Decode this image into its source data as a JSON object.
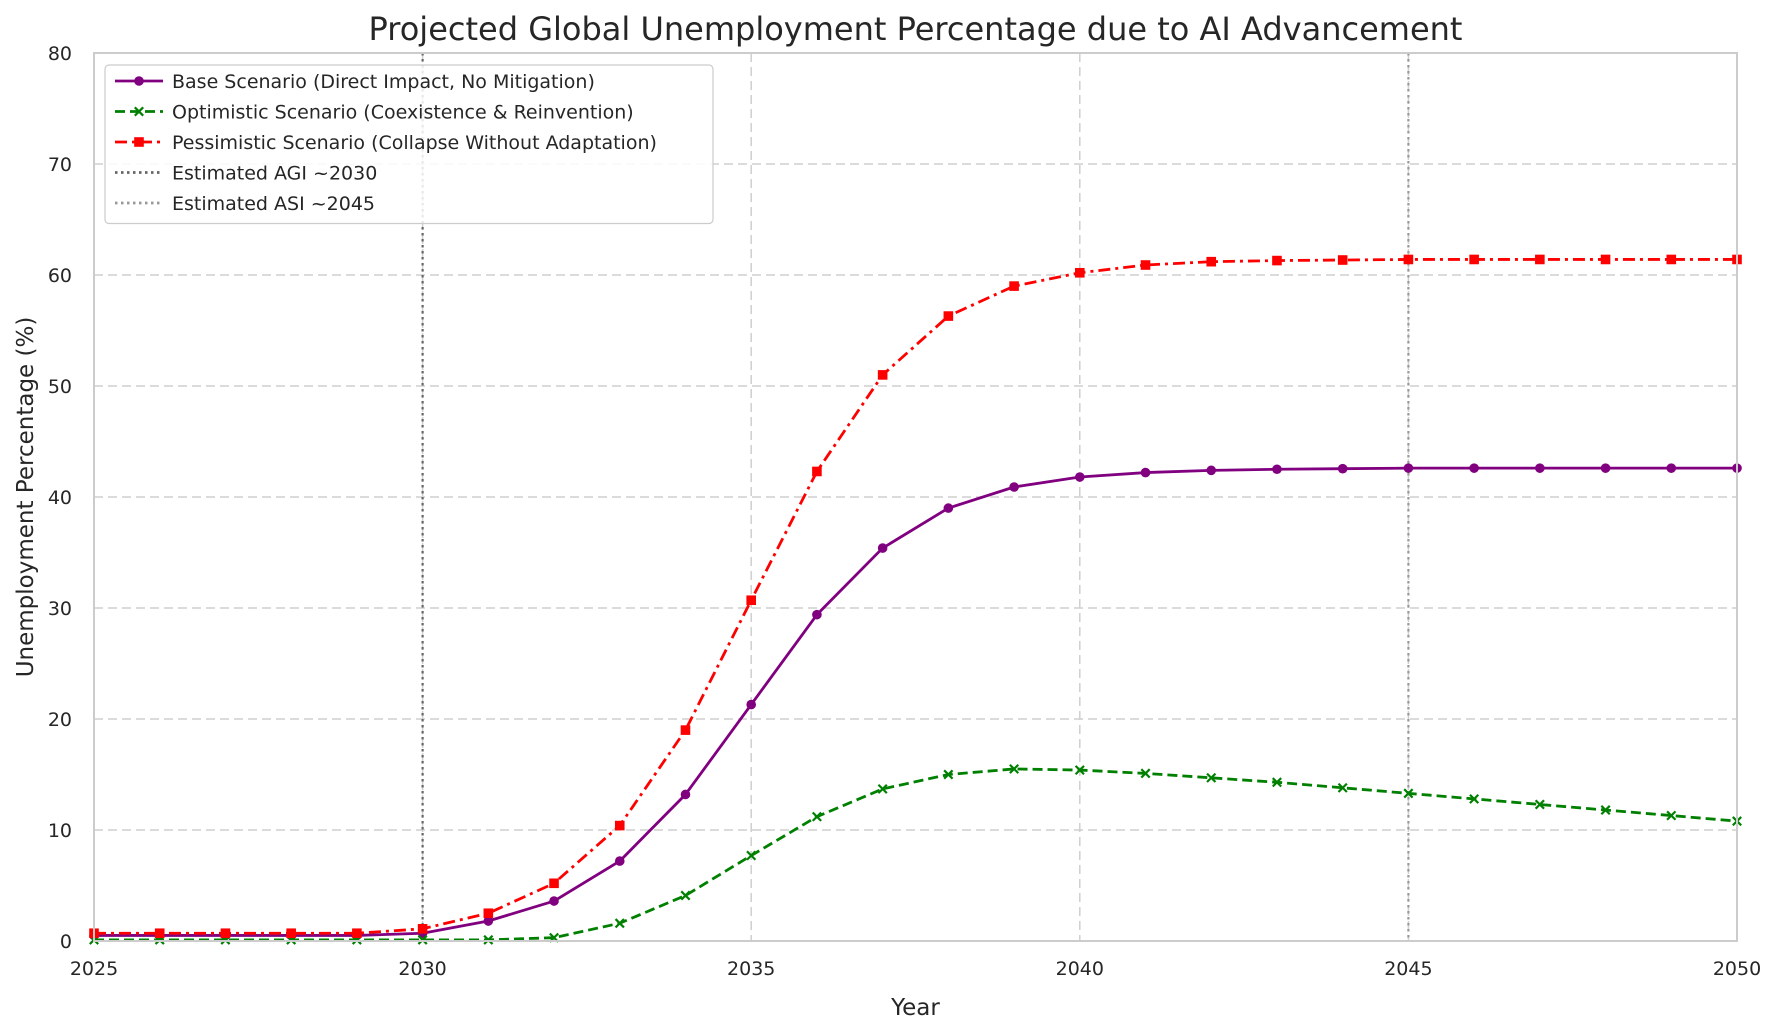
{
  "chart_data": {
    "type": "line",
    "title": "Projected Global Unemployment Percentage due to AI Advancement",
    "xlabel": "Year",
    "ylabel": "Unemployment Percentage (%)",
    "xlim": [
      2025,
      2050
    ],
    "ylim": [
      0,
      80
    ],
    "xticks": [
      2025,
      2030,
      2035,
      2040,
      2045,
      2050
    ],
    "yticks": [
      0,
      10,
      20,
      30,
      40,
      50,
      60,
      70,
      80
    ],
    "grid": true,
    "legend_position": "top-left",
    "x": [
      2025,
      2026,
      2027,
      2028,
      2029,
      2030,
      2031,
      2032,
      2033,
      2034,
      2035,
      2036,
      2037,
      2038,
      2039,
      2040,
      2041,
      2042,
      2043,
      2044,
      2045,
      2046,
      2047,
      2048,
      2049,
      2050
    ],
    "series": [
      {
        "name": "Base Scenario (Direct Impact, No Mitigation)",
        "color": "#800080",
        "line_style": "solid",
        "marker": "circle",
        "values": [
          0.5,
          0.5,
          0.5,
          0.5,
          0.5,
          0.7,
          1.8,
          3.6,
          7.2,
          13.2,
          21.3,
          29.4,
          35.4,
          39.0,
          40.9,
          41.8,
          42.2,
          42.4,
          42.5,
          42.55,
          42.6,
          42.6,
          42.6,
          42.6,
          42.6,
          42.6
        ]
      },
      {
        "name": "Optimistic Scenario (Coexistence & Reinvention)",
        "color": "#008000",
        "line_style": "dashed",
        "marker": "x",
        "values": [
          0.1,
          0.1,
          0.1,
          0.1,
          0.1,
          0.1,
          0.1,
          0.3,
          1.6,
          4.1,
          7.7,
          11.2,
          13.7,
          15.0,
          15.5,
          15.4,
          15.1,
          14.7,
          14.3,
          13.8,
          13.3,
          12.8,
          12.3,
          11.8,
          11.3,
          10.8
        ]
      },
      {
        "name": "Pessimistic Scenario (Collapse Without Adaptation)",
        "color": "#ff0000",
        "line_style": "dashdot",
        "marker": "square",
        "values": [
          0.7,
          0.7,
          0.7,
          0.7,
          0.7,
          1.1,
          2.5,
          5.2,
          10.4,
          19.0,
          30.7,
          42.3,
          51.0,
          56.3,
          59.0,
          60.2,
          60.9,
          61.2,
          61.3,
          61.35,
          61.4,
          61.4,
          61.4,
          61.4,
          61.4,
          61.4
        ]
      }
    ],
    "vlines": [
      {
        "name": "Estimated AGI ~2030",
        "x": 2030,
        "color": "#666666",
        "line_style": "dotted"
      },
      {
        "name": "Estimated ASI ~2045",
        "x": 2045,
        "color": "#999999",
        "line_style": "dotted"
      }
    ]
  }
}
